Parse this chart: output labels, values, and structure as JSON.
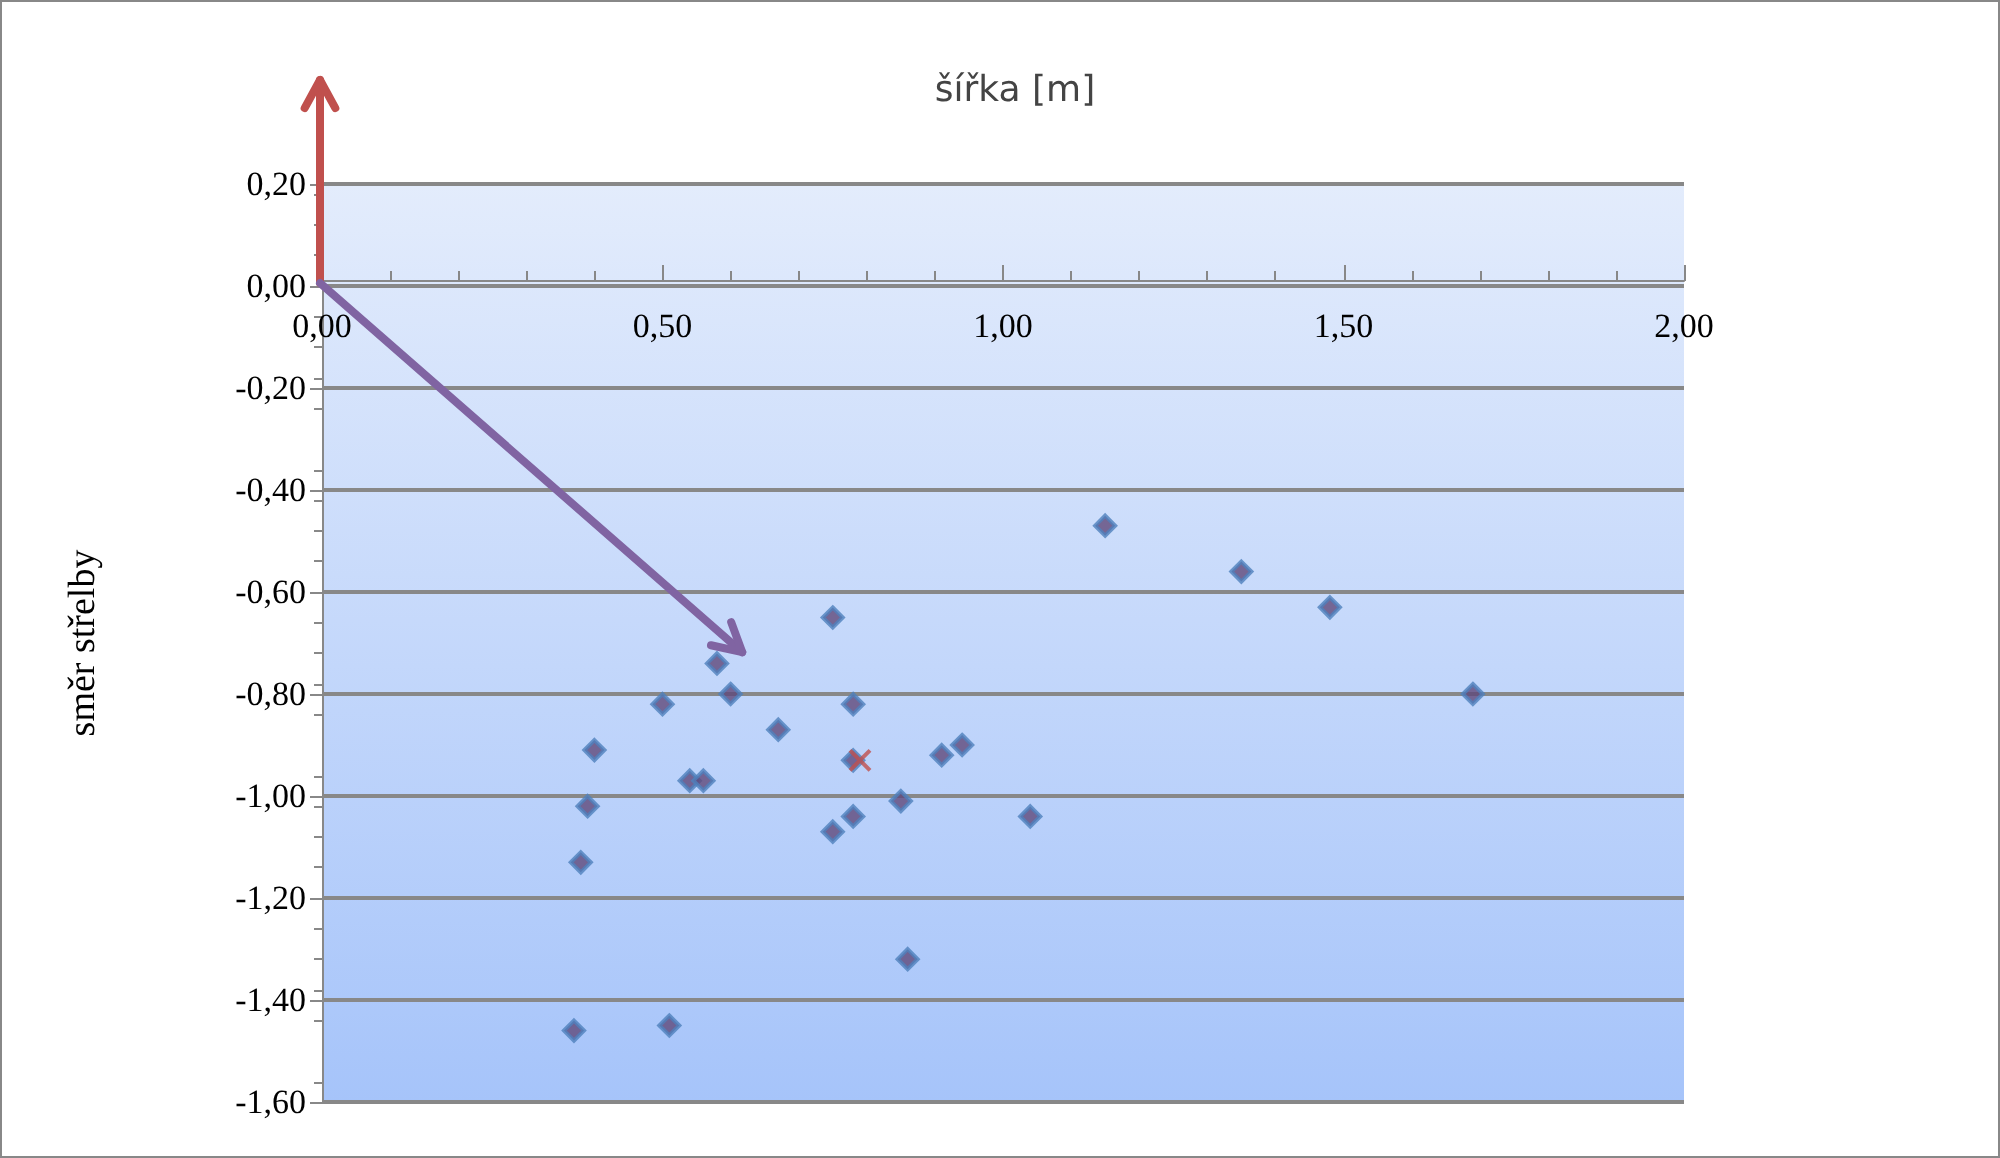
{
  "chart_data": {
    "type": "scatter",
    "xlabel": "šířka [m]",
    "ylabel": "směr střelby",
    "xlim": [
      0,
      2
    ],
    "xticks": [
      {
        "value": 0,
        "label": "0,00"
      },
      {
        "value": 0.5,
        "label": "0,50"
      },
      {
        "value": 1,
        "label": "1,00"
      },
      {
        "value": 1.5,
        "label": "1,50"
      },
      {
        "value": 2,
        "label": "2,00"
      }
    ],
    "ylim": [
      -1.6,
      0.2
    ],
    "yticks": [
      {
        "value": -1.6,
        "label": "-1,60"
      },
      {
        "value": -1.4,
        "label": "-1,40"
      },
      {
        "value": -1.2,
        "label": "-1,20"
      },
      {
        "value": -1,
        "label": "-1,00"
      },
      {
        "value": -0.8,
        "label": "-0,80"
      },
      {
        "value": -0.6,
        "label": "-0,60"
      },
      {
        "value": -0.4,
        "label": "-0,40"
      },
      {
        "value": -0.2,
        "label": "-0,20"
      },
      {
        "value": 0,
        "label": "0,00"
      },
      {
        "value": 0.2,
        "label": "0,20"
      }
    ],
    "grid": "y",
    "series": [
      {
        "color": "#5f497a",
        "marker": "diamond",
        "x": [
          1.15,
          1.35,
          1.48,
          1.69,
          0.75,
          0.58,
          0.6,
          0.5,
          0.78,
          0.67,
          0.4,
          0.78,
          0.91,
          0.94,
          0.54,
          0.56,
          0.39,
          0.85,
          0.78,
          0.75,
          1.04,
          0.38,
          0.86,
          0.37,
          0.51
        ],
        "values": [
          -0.47,
          -0.56,
          -0.63,
          -0.8,
          -0.65,
          -0.74,
          -0.8,
          -0.82,
          -0.82,
          -0.87,
          -0.91,
          -0.93,
          -0.92,
          -0.9,
          -0.97,
          -0.97,
          -1.02,
          -1.01,
          -1.04,
          -1.07,
          -1.04,
          -1.13,
          -1.32,
          -1.46,
          -1.45
        ]
      },
      {
        "color": "#c0504d",
        "marker": "cross",
        "x": [
          0.79
        ],
        "values": [
          -0.93
        ]
      }
    ]
  }
}
